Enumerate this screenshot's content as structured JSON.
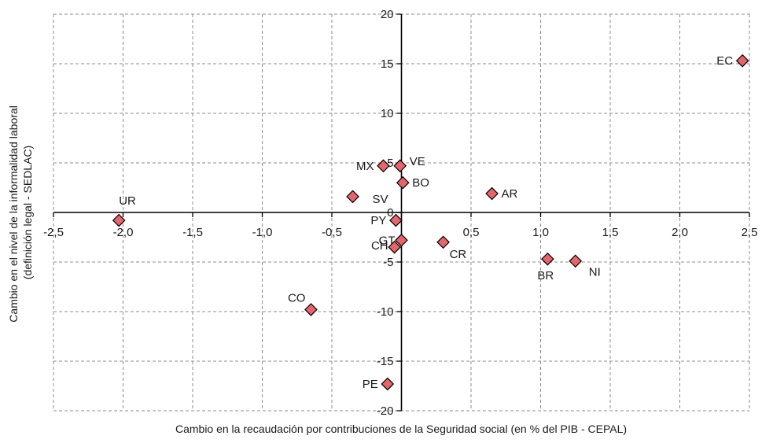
{
  "chart_data": {
    "type": "scatter",
    "title": "",
    "xlabel": "Cambio en la recaudación por contribuciones de la Seguridad social (en % del PIB - CEPAL)",
    "ylabel": [
      "Cambio en el nivel de la informalidad laboral",
      "(definición legal - SEDLAC)"
    ],
    "xlim": [
      -2.5,
      2.5
    ],
    "ylim": [
      -20,
      20
    ],
    "xticks": [
      -2.5,
      -2.0,
      -1.5,
      -1.0,
      -0.5,
      0,
      0.5,
      1.0,
      1.5,
      2.0,
      2.5
    ],
    "xtick_labels": [
      "-2,5",
      "-2,0",
      "-1,5",
      "-1,0",
      "-0,5",
      "0",
      "0,5",
      "1,0",
      "1,5",
      "2,0",
      "2,5"
    ],
    "yticks": [
      -20,
      -15,
      -10,
      -5,
      0,
      5,
      10,
      15,
      20
    ],
    "ytick_labels": [
      "-20",
      "-15",
      "-10",
      "-5",
      "0",
      "5",
      "10",
      "15",
      "20"
    ],
    "grid": true,
    "marker_color": "#e8646b",
    "points": [
      {
        "label": "EC",
        "x": 2.45,
        "y": 15.3
      },
      {
        "label": "UR",
        "x": -2.03,
        "y": -0.8
      },
      {
        "label": "MX",
        "x": -0.13,
        "y": 4.7
      },
      {
        "label": "VE",
        "x": -0.01,
        "y": 4.7
      },
      {
        "label": "BO",
        "x": 0.01,
        "y": 3.0
      },
      {
        "label": "SV",
        "x": -0.35,
        "y": 1.6
      },
      {
        "label": "AR",
        "x": 0.65,
        "y": 1.9
      },
      {
        "label": "PY",
        "x": -0.04,
        "y": -0.8
      },
      {
        "label": "GT",
        "x": 0.0,
        "y": -2.8
      },
      {
        "label": "CR",
        "x": 0.3,
        "y": -3.0
      },
      {
        "label": "CH",
        "x": -0.05,
        "y": -3.5
      },
      {
        "label": "BR",
        "x": 1.05,
        "y": -4.7
      },
      {
        "label": "NI",
        "x": 1.25,
        "y": -4.9
      },
      {
        "label": "CO",
        "x": -0.65,
        "y": -9.8
      },
      {
        "label": "PE",
        "x": -0.1,
        "y": -17.3
      }
    ]
  }
}
